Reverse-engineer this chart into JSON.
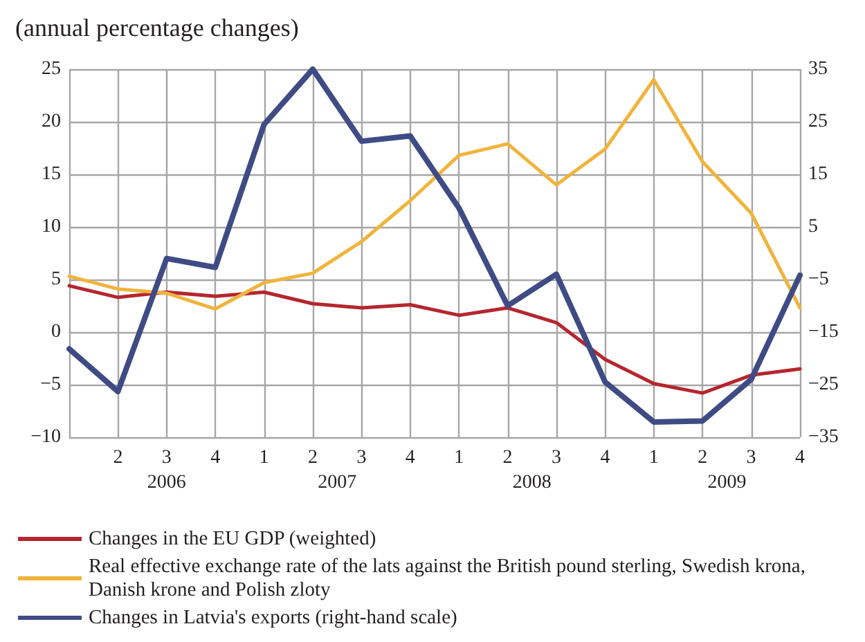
{
  "chart_data": {
    "type": "line",
    "title": "(annual percentage changes)",
    "categories": [
      null,
      "2",
      "3",
      "4",
      "1",
      "2",
      "3",
      "4",
      "1",
      "2",
      "3",
      "4",
      "1",
      "2",
      "3",
      "4"
    ],
    "annotations": [
      "2006",
      "2007",
      "2008",
      "2009"
    ],
    "series": [
      {
        "name": "Changes in the EU GDP (weighted)",
        "color": "#b5262e",
        "values": [
          4.4,
          3.3,
          3.8,
          3.4,
          3.8,
          2.7,
          2.3,
          2.6,
          1.6,
          2.3,
          0.9,
          -2.6,
          -4.9,
          -5.8,
          -4.1,
          -3.5
        ]
      },
      {
        "name": "Real effective exchange rate of the lats against the British pound sterling, Swedish krona, Danish krone and Polish zloty",
        "color": "#f0b43c",
        "values": [
          5.3,
          4.1,
          3.7,
          2.2,
          4.7,
          5.6,
          8.6,
          12.5,
          16.8,
          17.9,
          14.0,
          17.4,
          24.0,
          16.2,
          11.3,
          2.3
        ]
      },
      {
        "name": "Changes in Latvia's exports (right-hand scale)",
        "color": "#3f4b84",
        "axis": "y2",
        "values": [
          -18.2,
          -26.3,
          -1.0,
          -2.7,
          24.5,
          35,
          21.3,
          22.3,
          8.6,
          -10.0,
          -4.0,
          -24.5,
          -32.1,
          -31.9,
          -24.0,
          -4.2
        ]
      }
    ],
    "ylim": [
      -10,
      25
    ],
    "yticks": [
      -10,
      -5,
      0,
      5,
      10,
      15,
      20,
      25
    ],
    "y2lim": [
      -35,
      35
    ],
    "y2ticks": [
      -35,
      -25,
      -15,
      -5,
      5,
      15,
      25,
      35
    ],
    "grid": true,
    "legend": "bottom",
    "marker": "none",
    "line_style": "solid"
  }
}
